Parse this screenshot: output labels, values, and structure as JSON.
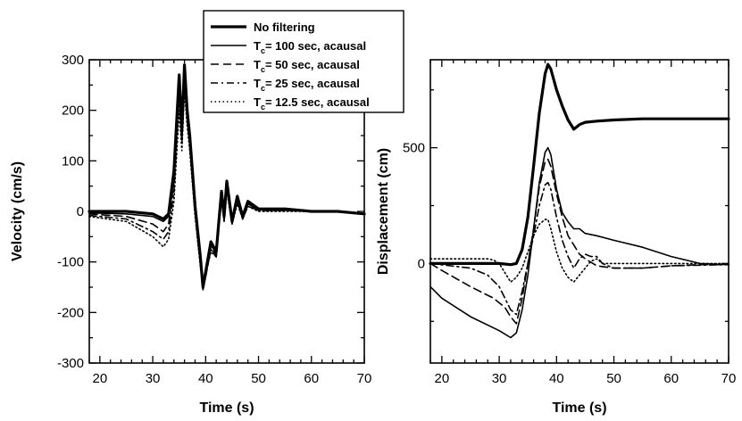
{
  "chart_data": [
    {
      "type": "line",
      "xlabel": "Time (s)",
      "ylabel": "Velocity (cm/s)",
      "xlim": [
        18,
        70
      ],
      "ylim": [
        -300,
        300
      ],
      "xticks": [
        "20",
        "30",
        "40",
        "50",
        "60",
        "70"
      ],
      "yticks": [
        "300",
        "200",
        "100",
        "0",
        "-100",
        "-200",
        "-300"
      ],
      "series": [
        {
          "name": "No filtering",
          "x": [
            18,
            25,
            30,
            32,
            33,
            34,
            35,
            35.5,
            36,
            36.5,
            37,
            38,
            39,
            39.5,
            40,
            41,
            42,
            42.5,
            43,
            43.5,
            44,
            45,
            46,
            47,
            48,
            50,
            55,
            60,
            65,
            70
          ],
          "y": [
            0,
            0,
            -5,
            -15,
            -5,
            80,
            270,
            160,
            290,
            200,
            150,
            10,
            -90,
            -150,
            -120,
            -60,
            -80,
            -20,
            40,
            -10,
            60,
            -20,
            30,
            -10,
            20,
            5,
            5,
            0,
            0,
            -5
          ]
        },
        {
          "name": "T_c= 100 sec, acausal",
          "x": [
            18,
            25,
            30,
            32,
            33,
            34,
            35,
            35.5,
            36,
            36.5,
            37,
            38,
            39,
            39.5,
            40,
            41,
            42,
            42.5,
            43,
            43.5,
            44,
            45,
            46,
            47,
            48,
            50,
            55,
            60,
            65,
            70
          ],
          "y": [
            -3,
            -5,
            -10,
            -20,
            -10,
            75,
            265,
            155,
            285,
            195,
            145,
            5,
            -95,
            -150,
            -125,
            -65,
            -85,
            -25,
            35,
            -15,
            55,
            -25,
            25,
            -15,
            15,
            3,
            3,
            0,
            0,
            -5
          ]
        },
        {
          "name": "T_c= 50 sec, acausal",
          "x": [
            18,
            25,
            30,
            32,
            33,
            34,
            35,
            35.5,
            36,
            36.5,
            37,
            38,
            39,
            39.5,
            40,
            41,
            42,
            42.5,
            43,
            43.5,
            44,
            45,
            46,
            47,
            48,
            50,
            55,
            60,
            65,
            70
          ],
          "y": [
            -5,
            -10,
            -25,
            -40,
            -25,
            60,
            250,
            145,
            275,
            190,
            140,
            0,
            -100,
            -155,
            -130,
            -70,
            -90,
            -30,
            30,
            -15,
            50,
            -25,
            20,
            -15,
            15,
            2,
            2,
            0,
            0,
            -5
          ]
        },
        {
          "name": "T_c= 25 sec, acausal",
          "x": [
            18,
            25,
            30,
            32,
            33,
            34,
            35,
            35.5,
            36,
            36.5,
            37,
            38,
            39,
            39.5,
            40,
            41,
            42,
            42.5,
            43,
            43.5,
            44,
            45,
            46,
            47,
            48,
            50,
            55,
            60,
            65,
            70
          ],
          "y": [
            -8,
            -15,
            -40,
            -55,
            -40,
            40,
            230,
            135,
            260,
            180,
            130,
            -5,
            -105,
            -155,
            -130,
            -75,
            -90,
            -30,
            25,
            -20,
            45,
            -25,
            20,
            -15,
            10,
            2,
            2,
            0,
            0,
            -5
          ]
        },
        {
          "name": "T_c= 12.5 sec, acausal",
          "x": [
            18,
            25,
            30,
            32,
            33,
            34,
            35,
            35.5,
            36,
            36.5,
            37,
            38,
            39,
            39.5,
            40,
            41,
            42,
            42.5,
            43,
            43.5,
            44,
            45,
            46,
            47,
            48,
            50,
            55,
            60,
            65,
            70
          ],
          "y": [
            -10,
            -20,
            -50,
            -70,
            -55,
            20,
            200,
            120,
            240,
            170,
            120,
            -10,
            -110,
            -150,
            -125,
            -80,
            -90,
            -30,
            20,
            -20,
            40,
            -25,
            15,
            -15,
            10,
            0,
            0,
            0,
            0,
            -5
          ]
        }
      ]
    },
    {
      "type": "line",
      "xlabel": "Time (s)",
      "ylabel": "Displacement (cm)",
      "xlim": [
        18,
        70
      ],
      "ylim": [
        -430,
        880
      ],
      "xticks": [
        "20",
        "30",
        "40",
        "50",
        "60",
        "70"
      ],
      "yticks": [
        "500",
        "0"
      ],
      "series": [
        {
          "name": "No filtering",
          "x": [
            18,
            25,
            30,
            32,
            33,
            34,
            35,
            36,
            37,
            38,
            38.5,
            39,
            40,
            41,
            42,
            43,
            44,
            45,
            47,
            50,
            55,
            60,
            65,
            70
          ],
          "y": [
            0,
            0,
            0,
            -5,
            0,
            60,
            200,
            420,
            650,
            820,
            860,
            840,
            750,
            680,
            620,
            580,
            600,
            610,
            615,
            620,
            625,
            625,
            625,
            625
          ]
        },
        {
          "name": "T_c= 100 sec, acausal",
          "x": [
            18,
            20,
            25,
            30,
            32,
            33,
            34,
            35,
            36,
            37,
            38,
            38.5,
            39,
            40,
            41,
            42,
            43,
            44,
            45,
            47,
            50,
            55,
            60,
            65,
            70
          ],
          "y": [
            -100,
            -150,
            -230,
            -290,
            -320,
            -300,
            -200,
            -50,
            150,
            350,
            480,
            500,
            470,
            320,
            220,
            180,
            150,
            150,
            130,
            120,
            100,
            70,
            30,
            0,
            -5
          ]
        },
        {
          "name": "T_c= 50 sec, acausal",
          "x": [
            18,
            20,
            25,
            29,
            31,
            32,
            33,
            34,
            35,
            36,
            37,
            38,
            38.5,
            39,
            40,
            41,
            42,
            43,
            44,
            45,
            47,
            50,
            55,
            60,
            65,
            70
          ],
          "y": [
            0,
            -30,
            -100,
            -150,
            -190,
            -230,
            -260,
            -150,
            0,
            150,
            330,
            440,
            450,
            420,
            300,
            200,
            120,
            80,
            40,
            20,
            -10,
            -20,
            -20,
            -10,
            -5,
            -5
          ]
        },
        {
          "name": "T_c= 25 sec, acausal",
          "x": [
            18,
            25,
            28,
            30,
            31,
            32,
            33,
            34,
            35,
            36,
            37,
            38,
            38.5,
            39,
            40,
            41,
            42,
            43,
            44,
            45,
            46,
            47,
            48,
            50,
            55,
            60,
            70
          ],
          "y": [
            0,
            -20,
            -50,
            -100,
            -150,
            -200,
            -220,
            -120,
            0,
            120,
            250,
            340,
            350,
            320,
            200,
            100,
            30,
            -20,
            20,
            40,
            30,
            30,
            0,
            -20,
            -20,
            -10,
            -5
          ]
        },
        {
          "name": "T_c= 12.5 sec, acausal",
          "x": [
            18,
            25,
            28,
            29,
            30,
            31,
            32,
            33,
            34,
            35,
            36,
            37,
            38,
            38.5,
            39,
            40,
            41,
            42,
            43,
            44,
            45,
            46,
            47,
            48,
            50,
            55,
            70
          ],
          "y": [
            20,
            20,
            20,
            15,
            0,
            -40,
            -80,
            -60,
            -20,
            50,
            120,
            170,
            190,
            190,
            150,
            50,
            -20,
            -60,
            -80,
            -50,
            -20,
            10,
            20,
            0,
            0,
            0,
            0
          ]
        }
      ]
    }
  ],
  "legend": {
    "position": "top-center",
    "entries": [
      {
        "label": "No filtering",
        "pre": "",
        "sub": "",
        "post": "",
        "dash": "solid",
        "width": "heavy"
      },
      {
        "label": "",
        "pre": "T",
        "sub": "c",
        "post": "= 100 sec, acausal",
        "dash": "solid",
        "width": "normal"
      },
      {
        "label": "",
        "pre": "T",
        "sub": "c",
        "post": "= 50 sec, acausal",
        "dash": "dashed",
        "width": "normal"
      },
      {
        "label": "",
        "pre": "T",
        "sub": "c",
        "post": "= 25 sec, acausal",
        "dash": "dashdot",
        "width": "normal"
      },
      {
        "label": "",
        "pre": "T",
        "sub": "c",
        "post": "= 12.5 sec, acausal",
        "dash": "dotted",
        "width": "normal"
      }
    ]
  }
}
